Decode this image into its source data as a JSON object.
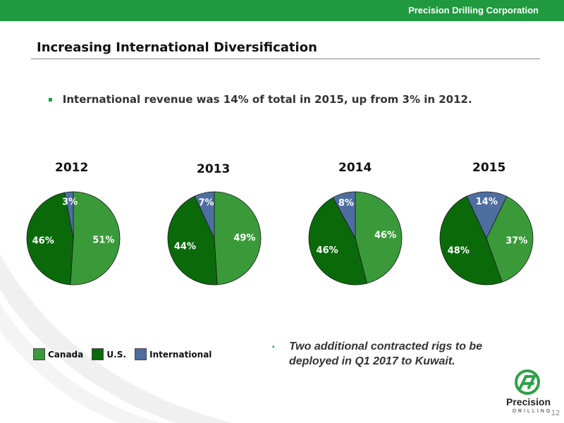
{
  "header": {
    "company": "Precision Drilling Corporation",
    "bar_color": "#1f9a3f"
  },
  "slide": {
    "title": "Increasing International Diversification",
    "bullet1": "International revenue was 14% of total in 2015, up from 3% in 2012.",
    "bullet2": "Two additional contracted rigs to be deployed in Q1 2017 to Kuwait.",
    "bullet_marker": "▪",
    "page_number": "12"
  },
  "logo": {
    "name": "Precision",
    "sub": "DRILLING"
  },
  "colors": {
    "Canada": "#3a9a3a",
    "U.S.": "#0a6a0a",
    "International": "#4e6ea0"
  },
  "chart_data": {
    "type": "pie",
    "legend_position": "bottom-left",
    "legend": [
      "Canada",
      "U.S.",
      "International"
    ],
    "charts": [
      {
        "year": "2012",
        "values": {
          "Canada": 51,
          "U.S.": 46,
          "International": 3
        },
        "labels": {
          "Canada": "51%",
          "U.S.": "46%",
          "International": "3%"
        }
      },
      {
        "year": "2013",
        "values": {
          "Canada": 49,
          "U.S.": 44,
          "International": 7
        },
        "labels": {
          "Canada": "49%",
          "U.S.": "44%",
          "International": "7%"
        }
      },
      {
        "year": "2014",
        "values": {
          "Canada": 46,
          "U.S.": 46,
          "International": 8
        },
        "labels": {
          "Canada": "46%",
          "U.S.": "46%",
          "International": "8%"
        }
      },
      {
        "year": "2015",
        "values": {
          "Canada": 37,
          "U.S.": 48,
          "International": 14
        },
        "labels": {
          "Canada": "37%",
          "U.S.": "48%",
          "International": "14%"
        }
      }
    ]
  }
}
